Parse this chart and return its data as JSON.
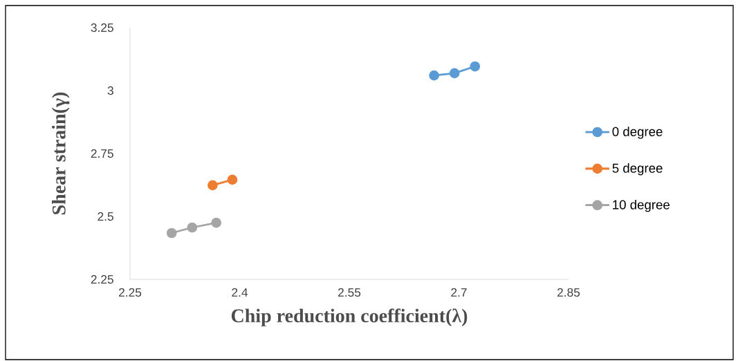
{
  "chart_data": {
    "type": "line",
    "xlabel": "Chip reduction coefficient(λ)",
    "ylabel": "Shear strain(γ)",
    "xlim": [
      2.25,
      2.85
    ],
    "xticks": [
      2.25,
      2.4,
      2.55,
      2.7,
      2.85
    ],
    "ylim": [
      2.25,
      3.25
    ],
    "yticks": [
      2.25,
      2.5,
      2.75,
      3,
      3.25
    ],
    "grid": false,
    "legend": "right",
    "marker": "circle",
    "line_style": "solid",
    "series": [
      {
        "name": "0 degree",
        "color": "#5b9bd5",
        "x": [
          2.666,
          2.694,
          2.722
        ],
        "values": [
          3.06,
          3.069,
          3.096
        ]
      },
      {
        "name": "5 degree",
        "color": "#ed7d31",
        "x": [
          2.363,
          2.39
        ],
        "values": [
          2.624,
          2.646
        ]
      },
      {
        "name": "10 degree",
        "color": "#a5a5a5",
        "x": [
          2.307,
          2.335,
          2.368
        ],
        "values": [
          2.434,
          2.456,
          2.475
        ]
      }
    ]
  }
}
